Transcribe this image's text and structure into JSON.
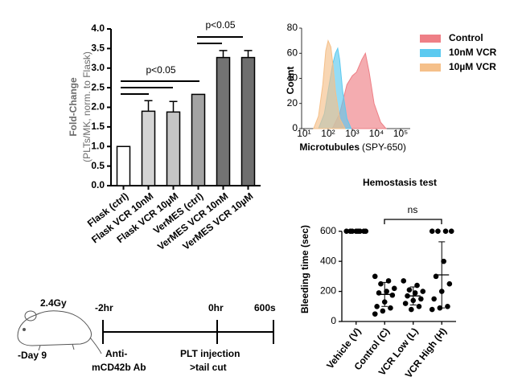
{
  "chart_data": [
    {
      "type": "bar",
      "ylabel": "Fold-Change",
      "ylabel_sub": "(PLTs/MK, norm. to Flask)",
      "categories": [
        "Flask (ctrl)",
        "Flask VCR 10nM",
        "Flask VCR 10µM",
        "VerMES (ctrl)",
        "VerMES VCR 10nM",
        "VerMES VCR 10µM"
      ],
      "values": [
        1.0,
        1.9,
        1.88,
        2.33,
        3.27,
        3.27
      ],
      "errors": [
        null,
        0.27,
        0.27,
        null,
        0.18,
        0.18
      ],
      "colors": [
        "#ffffff",
        "#d4d4d4",
        "#c4c4c4",
        "#a3a3a3",
        "#737373",
        "#6e6e6e"
      ],
      "ylim": [
        0,
        4
      ],
      "yticks": [
        {
          "value": 0,
          "label": "0.0"
        },
        {
          "value": 0.5,
          "label": "0.5"
        },
        {
          "value": 1,
          "label": "1.0"
        },
        {
          "value": 1.5,
          "label": "1.5"
        },
        {
          "value": 2,
          "label": "2.0"
        },
        {
          "value": 2.5,
          "label": "2.5"
        },
        {
          "value": 3,
          "label": "3.0"
        },
        {
          "value": 3.5,
          "label": "3.5"
        },
        {
          "value": 4,
          "label": "4.0"
        }
      ],
      "annotations": [
        "p<0.05",
        "p<0.05"
      ]
    },
    {
      "type": "area",
      "ylabel": "Count",
      "xlabel": "Microtubules",
      "xlabel_sub": "(SPY-650)",
      "log_x": true,
      "xlim": [
        8,
        250000
      ],
      "xticks": [
        {
          "value": 10,
          "label": "10¹"
        },
        {
          "value": 100,
          "label": "10²"
        },
        {
          "value": 1000,
          "label": "10³"
        },
        {
          "value": 10000,
          "label": "10⁴"
        },
        {
          "value": 100000,
          "label": "10⁵"
        }
      ],
      "ylim": [
        0,
        80
      ],
      "yticks": [
        0,
        20,
        40,
        60,
        80
      ],
      "series": [
        {
          "name": "Control",
          "color": "#ee7f86",
          "x": [
            150,
            300,
            600,
            1000,
            1500,
            2500,
            3500,
            5000,
            8000,
            15000,
            25000
          ],
          "values": [
            0,
            12,
            35,
            42,
            45,
            55,
            60,
            45,
            20,
            5,
            0
          ]
        },
        {
          "name": "10nM VCR",
          "color": "#5ccaf0",
          "x": [
            40,
            70,
            100,
            150,
            200,
            250,
            300,
            400,
            600,
            900
          ],
          "values": [
            0,
            12,
            30,
            50,
            60,
            64,
            55,
            30,
            8,
            0
          ]
        },
        {
          "name": "10µM VCR",
          "color": "#f5c08a",
          "x": [
            25,
            40,
            60,
            80,
            100,
            130,
            160,
            200,
            300,
            500
          ],
          "values": [
            0,
            10,
            35,
            62,
            70,
            65,
            50,
            30,
            8,
            0
          ]
        }
      ]
    },
    {
      "type": "strip",
      "title": "Hemostasis test",
      "ylabel": "Bleeding time (sec)",
      "categories": [
        "Vehicle (V)",
        "Control (C)",
        "VCR Low (L)",
        "VCR High (H)"
      ],
      "values": [
        [
          600,
          600,
          600,
          600,
          600,
          600,
          600,
          600
        ],
        [
          300,
          270,
          250,
          220,
          200,
          190,
          175,
          130,
          100,
          90,
          70,
          50
        ],
        [
          270,
          240,
          210,
          200,
          190,
          170,
          150,
          140,
          120,
          100,
          80
        ],
        [
          600,
          600,
          600,
          600,
          400,
          300,
          250,
          200,
          150,
          100,
          90,
          80
        ]
      ],
      "means": [
        600,
        180,
        170,
        310
      ],
      "sd": [
        0,
        80,
        60,
        220
      ],
      "color": "#000000",
      "ylim": [
        0,
        700
      ],
      "yticks": [
        0,
        200,
        400,
        600
      ],
      "annotations": [
        "ns"
      ]
    }
  ],
  "timeline": {
    "dose": "2.4Gy",
    "day": "-Day 9",
    "times": [
      "-2hr",
      "0hr",
      "600s"
    ],
    "events": [
      [
        "Anti-",
        "mCD42b Ab"
      ],
      [
        "PLT injection",
        ">tail cut"
      ]
    ]
  }
}
